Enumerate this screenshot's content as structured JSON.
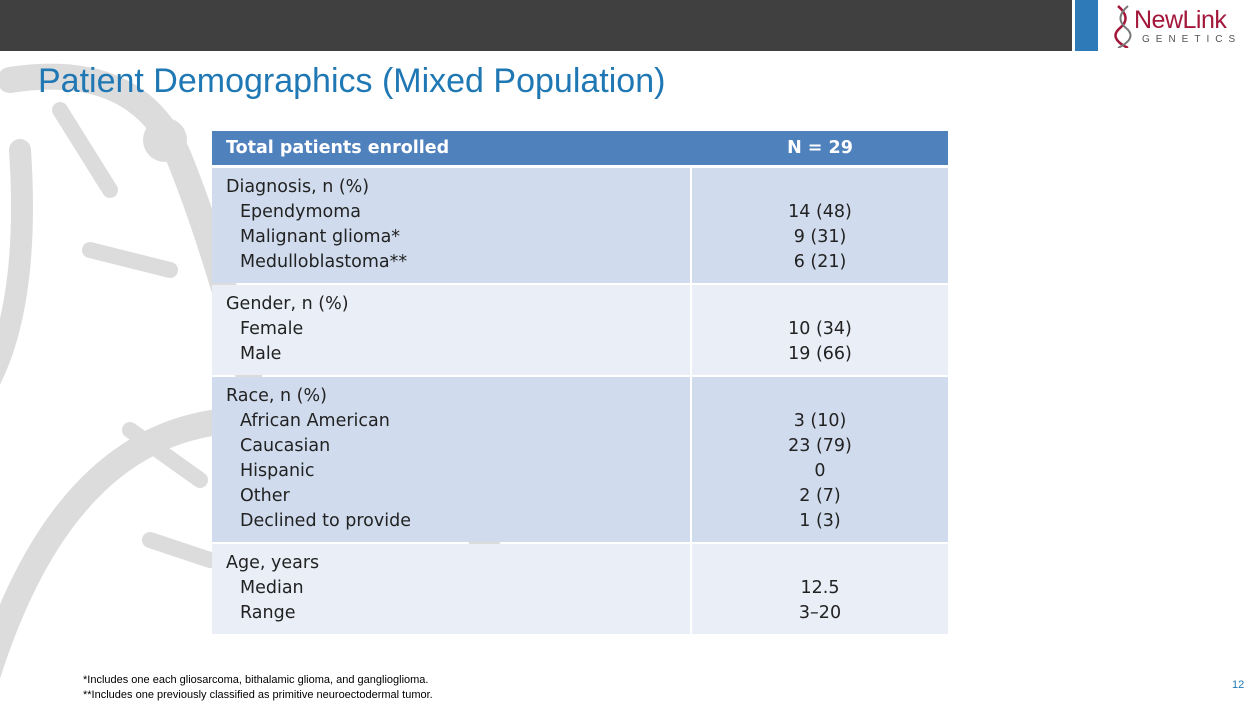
{
  "header": {
    "title": "Patient Demographics (Mixed Population)",
    "logo": {
      "name": "NewLink",
      "subtitle": "GENETICS"
    }
  },
  "table": {
    "columns": [
      "Total patients enrolled",
      "N = 29"
    ],
    "groups": [
      {
        "label": "Diagnosis, n (%)",
        "items": [
          {
            "label": "Ependymoma",
            "value": "14 (48)"
          },
          {
            "label": "Malignant glioma*",
            "value": "9 (31)"
          },
          {
            "label": "Medulloblastoma**",
            "value": "6 (21)"
          }
        ]
      },
      {
        "label": "Gender, n (%)",
        "items": [
          {
            "label": "Female",
            "value": "10 (34)"
          },
          {
            "label": "Male",
            "value": "19 (66)"
          }
        ]
      },
      {
        "label": "Race, n (%)",
        "items": [
          {
            "label": "African American",
            "value": "3 (10)"
          },
          {
            "label": "Caucasian",
            "value": "23 (79)"
          },
          {
            "label": "Hispanic",
            "value": "0"
          },
          {
            "label": "Other",
            "value": "2 (7)"
          },
          {
            "label": "Declined to provide",
            "value": "1 (3)"
          }
        ]
      },
      {
        "label": "Age, years",
        "items": [
          {
            "label": "Median",
            "value": "12.5"
          },
          {
            "label": "Range",
            "value": "3–20"
          }
        ]
      }
    ]
  },
  "footnotes": [
    "*Includes one each gliosarcoma, bithalamic glioma, and ganglioglioma.",
    "**Includes one previously classified as primitive neuroectodermal tumor."
  ],
  "page_number": "12"
}
